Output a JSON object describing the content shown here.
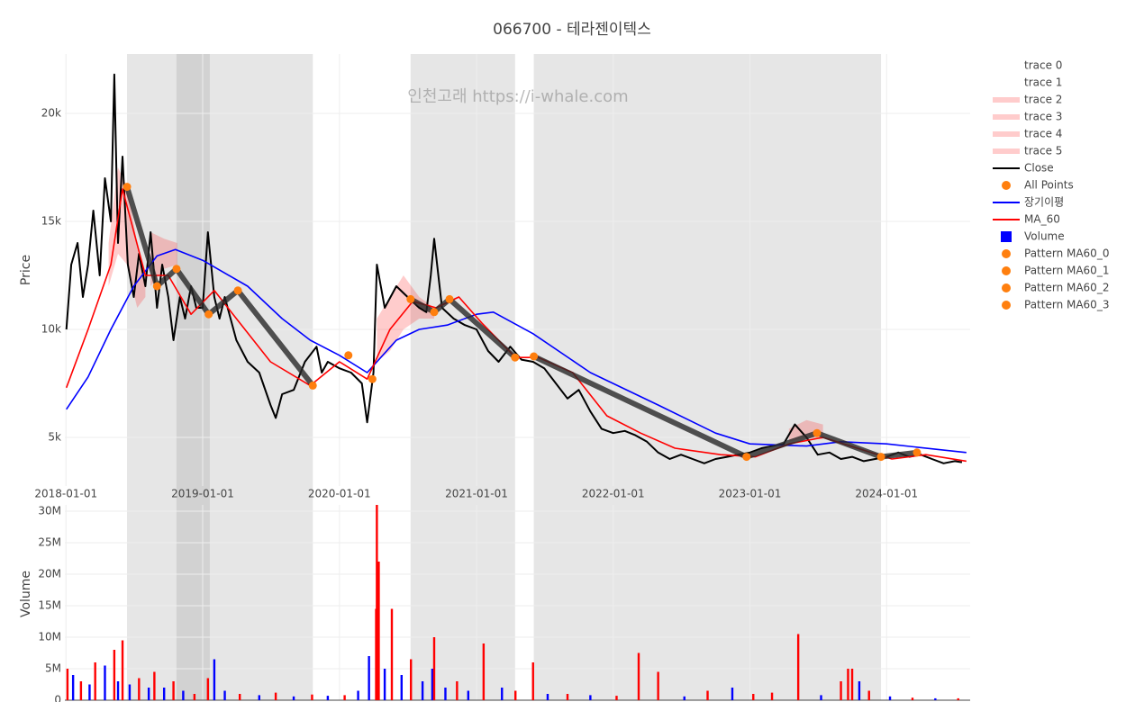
{
  "chart_data": {
    "type": "stock",
    "title": "066700 - 테라젠이텍스",
    "watermark": "인천고래 https://i-whale.com",
    "y_label": "Price",
    "y2_label": "Volume",
    "xlim": [
      "2017-12-29",
      "2024-08-11"
    ],
    "xticks": [
      "2018-01-01",
      "2019-01-01",
      "2020-01-01",
      "2021-01-01",
      "2022-01-01",
      "2023-01-01",
      "2024-01-01"
    ],
    "ylim": [
      2750,
      22750
    ],
    "yticks": [
      {
        "value": 5000,
        "label": "5k"
      },
      {
        "value": 10000,
        "label": "10k"
      },
      {
        "value": 15000,
        "label": "15k"
      },
      {
        "value": 20000,
        "label": "20k"
      }
    ],
    "y2lim": [
      0,
      31000000
    ],
    "y2ticks": [
      {
        "value": 0,
        "label": "0"
      },
      {
        "value": 5000000,
        "label": "5M"
      },
      {
        "value": 10000000,
        "label": "10M"
      },
      {
        "value": 15000000,
        "label": "15M"
      },
      {
        "value": 20000000,
        "label": "20M"
      },
      {
        "value": 25000000,
        "label": "25M"
      },
      {
        "value": 30000000,
        "label": "30M"
      }
    ],
    "grid": true,
    "legend": "right",
    "highlight_periods": [
      [
        "2018-06-13",
        "2019-10-22"
      ],
      [
        "2018-10-23",
        "2019-01-20"
      ],
      [
        "2020-07-09",
        "2021-04-14"
      ],
      [
        "2021-06-03",
        "2023-12-17"
      ]
    ],
    "highlight_color": "rgba(128,128,128,0.2)",
    "series": [
      {
        "name": "trace 0",
        "kind": "band",
        "color": "rgba(0,0,0,0)",
        "x": [],
        "upper": [],
        "lower": []
      },
      {
        "name": "trace 1",
        "kind": "band",
        "color": "rgba(0,0,0,0)",
        "x": [],
        "upper": [],
        "lower": []
      },
      {
        "name": "trace 2",
        "kind": "band",
        "color": "rgba(255,0,0,0.2)",
        "x": [
          "2018-04-25",
          "2018-05-20",
          "2018-06-13",
          "2018-07-10",
          "2018-08-01"
        ],
        "upper": [
          14000,
          17500,
          16600,
          14000,
          12500
        ],
        "lower": [
          12000,
          13500,
          13000,
          11000,
          11500
        ]
      },
      {
        "name": "trace 3",
        "kind": "band",
        "color": "rgba(255,0,0,0.2)",
        "x": [
          "2018-08-15",
          "2018-09-20",
          "2018-10-25"
        ],
        "upper": [
          14500,
          14200,
          14000
        ],
        "lower": [
          12000,
          12800,
          13000
        ]
      },
      {
        "name": "trace 4",
        "kind": "band",
        "color": "rgba(255,0,0,0.2)",
        "x": [
          "2020-04-10",
          "2020-05-15",
          "2020-06-20",
          "2020-08-01",
          "2020-09-10"
        ],
        "upper": [
          10500,
          11500,
          12500,
          11500,
          11000
        ],
        "lower": [
          8500,
          9000,
          10000,
          10500,
          10500
        ]
      },
      {
        "name": "trace 5",
        "kind": "band",
        "color": "rgba(255,0,0,0.2)",
        "x": [
          "2023-04-15",
          "2023-06-01",
          "2023-07-15"
        ],
        "upper": [
          5400,
          5800,
          5600
        ],
        "lower": [
          4800,
          5000,
          4900
        ]
      },
      {
        "name": "Close",
        "kind": "line",
        "color": "#000000",
        "width": 2,
        "x": [
          "2018-01-02",
          "2018-01-15",
          "2018-02-01",
          "2018-02-15",
          "2018-03-01",
          "2018-03-15",
          "2018-04-01",
          "2018-04-15",
          "2018-05-01",
          "2018-05-10",
          "2018-05-20",
          "2018-06-01",
          "2018-06-15",
          "2018-07-01",
          "2018-07-15",
          "2018-08-01",
          "2018-08-15",
          "2018-09-01",
          "2018-09-15",
          "2018-10-01",
          "2018-10-15",
          "2018-11-01",
          "2018-11-15",
          "2018-12-01",
          "2018-12-15",
          "2019-01-01",
          "2019-01-15",
          "2019-02-01",
          "2019-02-15",
          "2019-03-01",
          "2019-04-01",
          "2019-05-01",
          "2019-06-01",
          "2019-07-01",
          "2019-07-15",
          "2019-08-01",
          "2019-09-01",
          "2019-10-01",
          "2019-11-01",
          "2019-11-15",
          "2019-12-01",
          "2020-01-01",
          "2020-02-01",
          "2020-03-01",
          "2020-03-15",
          "2020-04-01",
          "2020-04-10",
          "2020-05-01",
          "2020-06-01",
          "2020-07-01",
          "2020-08-01",
          "2020-08-20",
          "2020-09-01",
          "2020-09-10",
          "2020-10-01",
          "2020-11-01",
          "2020-12-01",
          "2021-01-01",
          "2021-02-01",
          "2021-03-01",
          "2021-04-01",
          "2021-05-01",
          "2021-06-01",
          "2021-07-01",
          "2021-08-01",
          "2021-09-01",
          "2021-10-01",
          "2021-11-01",
          "2021-12-01",
          "2022-01-01",
          "2022-02-01",
          "2022-03-01",
          "2022-04-01",
          "2022-05-01",
          "2022-06-01",
          "2022-07-01",
          "2022-08-01",
          "2022-09-01",
          "2022-10-01",
          "2022-11-01",
          "2022-12-01",
          "2023-01-01",
          "2023-02-01",
          "2023-03-01",
          "2023-04-01",
          "2023-05-01",
          "2023-06-01",
          "2023-07-01",
          "2023-08-01",
          "2023-09-01",
          "2023-10-01",
          "2023-11-01",
          "2023-12-01",
          "2024-01-01",
          "2024-02-01",
          "2024-03-01",
          "2024-04-01",
          "2024-05-01",
          "2024-06-01",
          "2024-07-01",
          "2024-07-20"
        ],
        "values": [
          10000,
          13000,
          14000,
          11500,
          13000,
          15500,
          12500,
          17000,
          15000,
          21800,
          14000,
          18000,
          13000,
          11500,
          13500,
          12000,
          14500,
          11000,
          13000,
          11500,
          9500,
          11500,
          10500,
          12000,
          11000,
          11000,
          14500,
          11500,
          10500,
          11500,
          9500,
          8500,
          8000,
          6500,
          5900,
          7000,
          7200,
          8500,
          9200,
          8000,
          8500,
          8200,
          8000,
          7500,
          5700,
          8000,
          13000,
          11000,
          12000,
          11500,
          11000,
          10800,
          12500,
          14200,
          11000,
          10500,
          10200,
          10000,
          9000,
          8500,
          9200,
          8600,
          8500,
          8200,
          7500,
          6800,
          7200,
          6200,
          5400,
          5200,
          5300,
          5100,
          4800,
          4300,
          4000,
          4200,
          4000,
          3800,
          4000,
          4100,
          4200,
          4300,
          4500,
          4600,
          4700,
          5600,
          5000,
          4200,
          4300,
          4000,
          4100,
          3900,
          4000,
          4100,
          4300,
          4100,
          4200,
          4000,
          3800,
          3900,
          3850
        ]
      },
      {
        "name": "All Points",
        "kind": "markers",
        "color": "#ff7f0e",
        "x": [
          "2018-06-13",
          "2018-09-01",
          "2018-10-23",
          "2019-01-17",
          "2019-04-05",
          "2019-10-22",
          "2020-01-25",
          "2020-03-29",
          "2020-07-09",
          "2020-09-10",
          "2020-10-21",
          "2021-04-14",
          "2021-06-03",
          "2022-12-23",
          "2023-06-29",
          "2023-12-17",
          "2024-03-22"
        ],
        "values": [
          16600,
          12000,
          12800,
          10700,
          11800,
          7400,
          8800,
          7700,
          11400,
          10800,
          11400,
          8700,
          8750,
          4100,
          5200,
          4100,
          4300
        ]
      },
      {
        "name": "장기이평",
        "kind": "line",
        "color": "#0000ff",
        "width": 1.6,
        "x": [
          "2018-01-02",
          "2018-03-01",
          "2018-05-01",
          "2018-07-01",
          "2018-09-01",
          "2018-10-20",
          "2019-01-01",
          "2019-05-01",
          "2019-08-01",
          "2019-10-15",
          "2020-01-01",
          "2020-03-15",
          "2020-06-01",
          "2020-08-01",
          "2020-10-15",
          "2021-01-01",
          "2021-02-15",
          "2021-06-01",
          "2021-11-01",
          "2022-05-01",
          "2022-10-01",
          "2023-01-01",
          "2023-06-01",
          "2023-09-01",
          "2024-01-01",
          "2024-08-01"
        ],
        "values": [
          6300,
          7800,
          10000,
          12000,
          13400,
          13700,
          13200,
          12000,
          10500,
          9500,
          8800,
          8000,
          9500,
          10000,
          10200,
          10700,
          10800,
          9800,
          8000,
          6500,
          5200,
          4700,
          4600,
          4800,
          4700,
          4300
        ]
      },
      {
        "name": "MA_60",
        "kind": "line",
        "color": "#ff0000",
        "width": 1.6,
        "x": [
          "2018-01-02",
          "2018-03-01",
          "2018-05-01",
          "2018-06-01",
          "2018-08-01",
          "2018-10-01",
          "2018-12-01",
          "2019-02-01",
          "2019-04-01",
          "2019-07-01",
          "2019-10-15",
          "2020-01-01",
          "2020-03-15",
          "2020-05-15",
          "2020-07-15",
          "2020-09-15",
          "2020-11-15",
          "2021-01-15",
          "2021-04-15",
          "2021-06-15",
          "2021-09-15",
          "2021-12-15",
          "2022-03-15",
          "2022-06-15",
          "2022-10-15",
          "2023-01-15",
          "2023-04-15",
          "2023-07-15",
          "2023-10-15",
          "2024-01-15",
          "2024-04-15",
          "2024-08-01"
        ],
        "values": [
          7300,
          10000,
          13000,
          16500,
          12500,
          12500,
          10700,
          11800,
          10500,
          8500,
          7400,
          8500,
          7700,
          10000,
          11300,
          11000,
          11500,
          10300,
          8700,
          8700,
          8000,
          6000,
          5200,
          4500,
          4200,
          4100,
          4700,
          5000,
          4500,
          4000,
          4200,
          3900
        ]
      },
      {
        "name": "Volume",
        "kind": "bar",
        "panel": "volume",
        "color": "#0000ff",
        "x": [
          "2018-01-05",
          "2018-01-20",
          "2018-02-10",
          "2018-03-05",
          "2018-03-20",
          "2018-04-15",
          "2018-05-10",
          "2018-05-20",
          "2018-06-01",
          "2018-06-20",
          "2018-07-15",
          "2018-08-10",
          "2018-08-25",
          "2018-09-20",
          "2018-10-15",
          "2018-11-10",
          "2018-12-10",
          "2019-01-15",
          "2019-02-01",
          "2019-03-01",
          "2019-04-10",
          "2019-06-01",
          "2019-07-15",
          "2019-09-01",
          "2019-10-20",
          "2019-12-01",
          "2020-01-15",
          "2020-02-20",
          "2020-03-20",
          "2020-04-08",
          "2020-04-10",
          "2020-04-15",
          "2020-05-01",
          "2020-05-20",
          "2020-06-15",
          "2020-07-10",
          "2020-08-10",
          "2020-09-05",
          "2020-09-10",
          "2020-10-10",
          "2020-11-10",
          "2020-12-10",
          "2021-01-20",
          "2021-03-10",
          "2021-04-15",
          "2021-06-01",
          "2021-07-10",
          "2021-09-01",
          "2021-11-01",
          "2022-01-10",
          "2022-03-10",
          "2022-05-01",
          "2022-07-10",
          "2022-09-10",
          "2022-11-15",
          "2023-01-10",
          "2023-03-01",
          "2023-05-10",
          "2023-07-10",
          "2023-09-01",
          "2023-09-20",
          "2023-10-01",
          "2023-10-20",
          "2023-11-15",
          "2024-01-10",
          "2024-03-10",
          "2024-05-10",
          "2024-07-10"
        ],
        "values": [
          5000000,
          4000000,
          3000000,
          2500000,
          6000000,
          5500000,
          8000000,
          3000000,
          9500000,
          2500000,
          3500000,
          2000000,
          4500000,
          2000000,
          3000000,
          1500000,
          1000000,
          3500000,
          6500000,
          1500000,
          1000000,
          800000,
          1200000,
          600000,
          900000,
          700000,
          800000,
          1500000,
          7000000,
          14500000,
          31000000,
          22000000,
          5000000,
          14500000,
          4000000,
          6500000,
          3000000,
          5000000,
          10000000,
          2000000,
          3000000,
          1500000,
          9000000,
          2000000,
          1500000,
          6000000,
          1000000,
          1000000,
          800000,
          700000,
          7500000,
          4500000,
          600000,
          1500000,
          2000000,
          1000000,
          1200000,
          10500000,
          800000,
          3000000,
          5000000,
          5000000,
          3000000,
          1500000,
          600000,
          400000,
          300000,
          300000
        ],
        "bar_colors": [
          "#ff0000",
          "#0000ff",
          "#ff0000",
          "#0000ff",
          "#ff0000",
          "#0000ff",
          "#ff0000",
          "#0000ff",
          "#ff0000",
          "#0000ff",
          "#ff0000",
          "#0000ff",
          "#ff0000",
          "#0000ff",
          "#ff0000",
          "#0000ff",
          "#ff0000",
          "#ff0000",
          "#0000ff",
          "#0000ff",
          "#ff0000",
          "#0000ff",
          "#ff0000",
          "#0000ff",
          "#ff0000",
          "#0000ff",
          "#ff0000",
          "#0000ff",
          "#0000ff",
          "#ff0000",
          "#ff0000",
          "#ff0000",
          "#0000ff",
          "#ff0000",
          "#0000ff",
          "#ff0000",
          "#0000ff",
          "#0000ff",
          "#ff0000",
          "#0000ff",
          "#ff0000",
          "#0000ff",
          "#ff0000",
          "#0000ff",
          "#ff0000",
          "#ff0000",
          "#0000ff",
          "#ff0000",
          "#0000ff",
          "#ff0000",
          "#ff0000",
          "#ff0000",
          "#0000ff",
          "#ff0000",
          "#0000ff",
          "#ff0000",
          "#ff0000",
          "#ff0000",
          "#0000ff",
          "#ff0000",
          "#ff0000",
          "#ff0000",
          "#0000ff",
          "#ff0000",
          "#0000ff",
          "#ff0000",
          "#0000ff",
          "#ff0000"
        ]
      },
      {
        "name": "Pattern MA60_0",
        "kind": "pattern",
        "color": "#ff7f0e",
        "line_color": "rgba(40,40,40,0.8)",
        "x": [
          "2018-06-13",
          "2018-09-01",
          "2018-10-23",
          "2019-01-17",
          "2019-04-05",
          "2019-10-22"
        ],
        "values": [
          16600,
          12000,
          12800,
          10700,
          11800,
          7400
        ]
      },
      {
        "name": "Pattern MA60_1",
        "kind": "pattern",
        "color": "#ff7f0e",
        "line_color": "rgba(40,40,40,0.8)",
        "x": [
          "2020-07-09",
          "2020-09-10",
          "2020-10-21",
          "2021-04-14"
        ],
        "values": [
          11400,
          10800,
          11400,
          8700
        ]
      },
      {
        "name": "Pattern MA60_2",
        "kind": "pattern",
        "color": "#ff7f0e",
        "line_color": "rgba(40,40,40,0.8)",
        "x": [
          "2021-06-03",
          "2022-12-23",
          "2023-06-29",
          "2023-12-17"
        ],
        "values": [
          8750,
          4100,
          5200,
          4100
        ]
      },
      {
        "name": "Pattern MA60_3",
        "kind": "pattern",
        "color": "#ff7f0e",
        "line_color": "rgba(40,40,40,0.8)",
        "x": [
          "2023-12-17",
          "2024-03-22"
        ],
        "values": [
          4100,
          4300
        ]
      }
    ]
  }
}
